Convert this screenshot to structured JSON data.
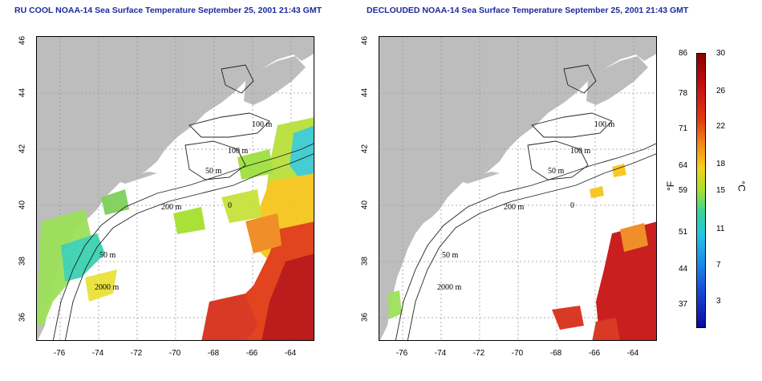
{
  "titles": {
    "left": "RU COOL NOAA-14 Sea Surface Temperature September 25, 2001 21:43 GMT",
    "right": "DECLOUDED NOAA-14 Sea Surface Temperature September 25, 2001 21:43 GMT"
  },
  "map_axes": {
    "lat_ticks": [
      "46",
      "44",
      "42",
      "40",
      "38",
      "36"
    ],
    "lon_ticks": [
      "-76",
      "-74",
      "-72",
      "-70",
      "-68",
      "-66",
      "-64"
    ]
  },
  "contour_labels": {
    "left": [
      "100 m",
      "100 m",
      "50 m",
      "200 m",
      "0",
      "50 m",
      "2000 m"
    ],
    "right": [
      "100 m",
      "100 m",
      "50 m",
      "200 m",
      "0",
      "50 m",
      "2000 m"
    ]
  },
  "colorbar": {
    "fahrenheit_ticks": [
      "86",
      "78",
      "71",
      "64",
      "59",
      "51",
      "44",
      "37"
    ],
    "celsius_ticks": [
      "30",
      "26",
      "22",
      "18",
      "15",
      "11",
      "7",
      "3"
    ],
    "fahrenheit_unit": "°F",
    "celsius_unit": "°C",
    "colors": [
      "#8b0000",
      "#e23a12",
      "#f48a16",
      "#f5d21a",
      "#a6e02e",
      "#25c6e6",
      "#1747d6",
      "#0a0a9e"
    ]
  }
}
